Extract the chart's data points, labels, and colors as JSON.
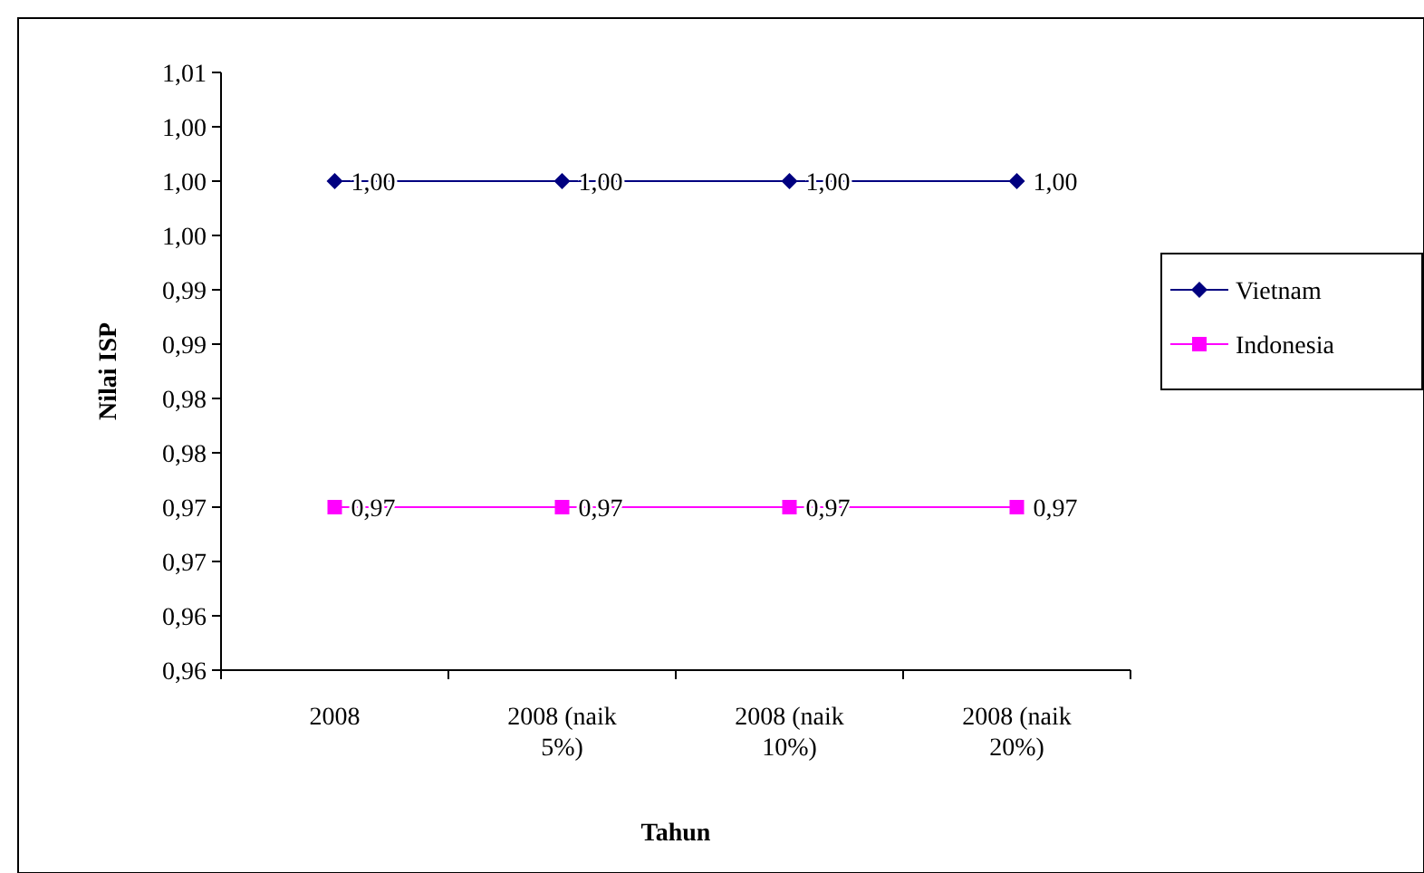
{
  "chart_data": {
    "type": "line",
    "xlabel": "Tahun",
    "ylabel": "Nilai ISP",
    "categories": [
      "2008",
      "2008 (naik 5%)",
      "2008 (naik 10%)",
      "2008 (naik 20%)"
    ],
    "series": [
      {
        "name": "Vietnam",
        "color": "#000080",
        "marker": "diamond",
        "values": [
          1.0,
          1.0,
          1.0,
          1.0
        ],
        "value_labels": [
          "1,00",
          "1,00",
          "1,00",
          "1,00"
        ]
      },
      {
        "name": "Indonesia",
        "color": "#ff00ff",
        "marker": "square",
        "values": [
          0.97,
          0.97,
          0.97,
          0.97
        ],
        "value_labels": [
          "0,97",
          "0,97",
          "0,97",
          "0,97"
        ]
      }
    ],
    "ylim": [
      0.955,
      1.01
    ],
    "yticks": [
      {
        "value": 0.955,
        "label": "0,96"
      },
      {
        "value": 0.96,
        "label": "0,96"
      },
      {
        "value": 0.965,
        "label": "0,97"
      },
      {
        "value": 0.97,
        "label": "0,97"
      },
      {
        "value": 0.975,
        "label": "0,98"
      },
      {
        "value": 0.98,
        "label": "0,98"
      },
      {
        "value": 0.985,
        "label": "0,99"
      },
      {
        "value": 0.99,
        "label": "0,99"
      },
      {
        "value": 0.995,
        "label": "1,00"
      },
      {
        "value": 1.0,
        "label": "1,00"
      },
      {
        "value": 1.005,
        "label": "1,00"
      },
      {
        "value": 1.01,
        "label": "1,01"
      }
    ],
    "grid": false,
    "legend": "right",
    "line_style": "solid"
  }
}
